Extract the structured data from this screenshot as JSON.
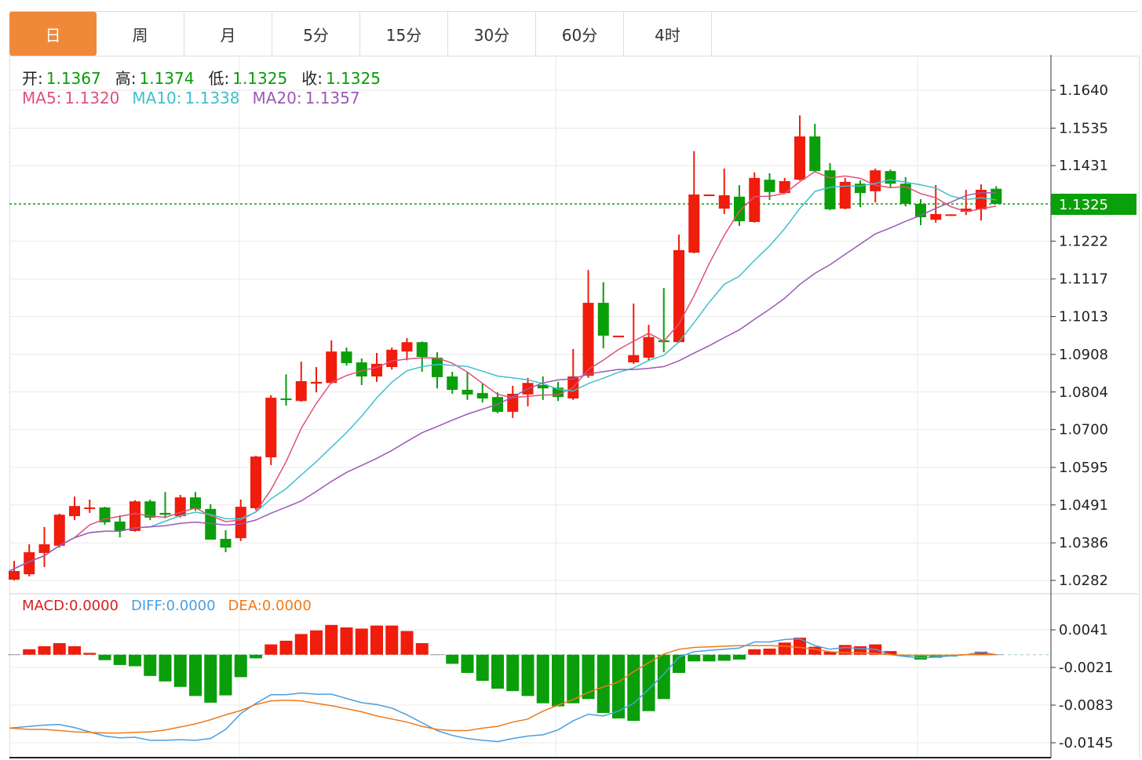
{
  "tabs": [
    {
      "label": "日",
      "active": true
    },
    {
      "label": "周"
    },
    {
      "label": "月"
    },
    {
      "label": "5分"
    },
    {
      "label": "15分"
    },
    {
      "label": "30分"
    },
    {
      "label": "60分"
    },
    {
      "label": "4时"
    }
  ],
  "ohlc_header": {
    "open_label": "开:",
    "open": "1.1367",
    "high_label": "高:",
    "high": "1.1374",
    "low_label": "低:",
    "low": "1.1325",
    "close_label": "收:",
    "close": "1.1325"
  },
  "ma_header": {
    "ma5_label": "MA5:",
    "ma5": "1.1320",
    "ma10_label": "MA10:",
    "ma10": "1.1338",
    "ma20_label": "MA20:",
    "ma20": "1.1357"
  },
  "macd_header": {
    "macd_label": "MACD:",
    "macd": "0.0000",
    "diff_label": "DIFF:",
    "diff": "0.0000",
    "dea_label": "DEA:",
    "dea": "0.0000"
  },
  "colors": {
    "up": "#f01c0c",
    "down": "#0a9e0a",
    "ma5": "#e0507a",
    "ma10": "#3fc1c9",
    "ma20": "#9b59b6",
    "diff": "#4a9fe0",
    "dea": "#f07a1a",
    "accent": "#f0883a",
    "last_price_bg": "#0aa00a"
  },
  "chart_data": [
    {
      "type": "candlestick",
      "up_color_meaning": "red = rise, green = fall",
      "last_price": "1.1325",
      "y_ticks": [
        "1.1640",
        "1.1535",
        "1.1431",
        "1.1222",
        "1.1117",
        "1.1013",
        "1.0908",
        "1.0804",
        "1.0700",
        "1.0595",
        "1.0491",
        "1.0386",
        "1.0282"
      ],
      "ylim": [
        1.0282,
        1.164
      ],
      "grid": true,
      "moving_averages": [
        5,
        10,
        20
      ],
      "ohlc": [
        [
          1.0284,
          1.0336,
          1.0282,
          1.0308
        ],
        [
          1.0299,
          1.0382,
          1.0293,
          1.036
        ],
        [
          1.0358,
          1.043,
          1.0319,
          1.0382
        ],
        [
          1.0378,
          1.0467,
          1.0373,
          1.0464
        ],
        [
          1.046,
          1.0514,
          1.0449,
          1.0488
        ],
        [
          1.048,
          1.0506,
          1.0469,
          1.0484
        ],
        [
          1.0484,
          1.0486,
          1.0436,
          1.0443
        ],
        [
          1.0445,
          1.0462,
          1.0401,
          1.0419
        ],
        [
          1.0419,
          1.0504,
          1.0417,
          1.0501
        ],
        [
          1.0501,
          1.0506,
          1.0449,
          1.0456
        ],
        [
          1.0469,
          1.0527,
          1.0454,
          1.0464
        ],
        [
          1.046,
          1.0519,
          1.0456,
          1.0512
        ],
        [
          1.0512,
          1.0527,
          1.0475,
          1.048
        ],
        [
          1.048,
          1.0493,
          1.0395,
          1.0395
        ],
        [
          1.0397,
          1.0421,
          1.036,
          1.0373
        ],
        [
          1.0399,
          1.0506,
          1.0391,
          1.0486
        ],
        [
          1.0482,
          1.0627,
          1.0477,
          1.0625
        ],
        [
          1.0623,
          1.0795,
          1.0601,
          1.0788
        ],
        [
          1.0786,
          1.0853,
          1.0766,
          1.0782
        ],
        [
          1.0779,
          1.0888,
          1.0777,
          1.0834
        ],
        [
          1.0827,
          1.0873,
          1.0803,
          1.0832
        ],
        [
          1.0829,
          1.0947,
          1.0827,
          1.0916
        ],
        [
          1.0916,
          1.0927,
          1.0877,
          1.0884
        ],
        [
          1.0886,
          1.0897,
          1.0823,
          1.0847
        ],
        [
          1.0847,
          1.0912,
          1.0832,
          1.0882
        ],
        [
          1.0873,
          1.0927,
          1.0866,
          1.0921
        ],
        [
          1.0916,
          1.0953,
          1.0892,
          1.0942
        ],
        [
          1.0942,
          1.0944,
          1.086,
          1.0901
        ],
        [
          1.0899,
          1.0914,
          1.0814,
          1.0845
        ],
        [
          1.0847,
          1.086,
          1.0799,
          1.081
        ],
        [
          1.081,
          1.086,
          1.0782,
          1.0797
        ],
        [
          1.0801,
          1.0827,
          1.0775,
          1.0786
        ],
        [
          1.079,
          1.0803,
          1.0745,
          1.0749
        ],
        [
          1.0749,
          1.0821,
          1.0732,
          1.0799
        ],
        [
          1.0797,
          1.0843,
          1.0764,
          1.0829
        ],
        [
          1.0823,
          1.0847,
          1.0782,
          1.0814
        ],
        [
          1.0816,
          1.0832,
          1.0779,
          1.079
        ],
        [
          1.0786,
          1.0923,
          1.0782,
          1.0847
        ],
        [
          1.0849,
          1.1142,
          1.0843,
          1.1051
        ],
        [
          1.1051,
          1.1108,
          1.0925,
          1.096
        ],
        [
          1.0958,
          1.096,
          1.0958,
          1.096
        ],
        [
          1.0886,
          1.1049,
          1.0882,
          1.0906
        ],
        [
          1.0899,
          1.099,
          1.0892,
          1.0956
        ],
        [
          1.0947,
          1.1092,
          1.0914,
          1.0942
        ],
        [
          1.0942,
          1.124,
          1.094,
          1.1197
        ],
        [
          1.119,
          1.1471,
          1.1188,
          1.1351
        ],
        [
          1.1349,
          1.1351,
          1.1349,
          1.1351
        ],
        [
          1.1312,
          1.1423,
          1.1297,
          1.1349
        ],
        [
          1.1345,
          1.1377,
          1.1264,
          1.1277
        ],
        [
          1.1275,
          1.1412,
          1.1273,
          1.1397
        ],
        [
          1.1392,
          1.141,
          1.1336,
          1.1358
        ],
        [
          1.1355,
          1.1397,
          1.1353,
          1.1388
        ],
        [
          1.1392,
          1.157,
          1.139,
          1.1512
        ],
        [
          1.1512,
          1.1547,
          1.1414,
          1.1416
        ],
        [
          1.1418,
          1.1438,
          1.1308,
          1.131
        ],
        [
          1.1312,
          1.1397,
          1.131,
          1.1386
        ],
        [
          1.1381,
          1.139,
          1.1316,
          1.1355
        ],
        [
          1.136,
          1.1423,
          1.1329,
          1.1418
        ],
        [
          1.1416,
          1.142,
          1.1371,
          1.1381
        ],
        [
          1.1381,
          1.1399,
          1.1318,
          1.1325
        ],
        [
          1.1325,
          1.1338,
          1.1266,
          1.1288
        ],
        [
          1.1281,
          1.1377,
          1.1273,
          1.1297
        ],
        [
          1.1295,
          1.1296,
          1.1295,
          1.1296
        ],
        [
          1.1303,
          1.1364,
          1.1294,
          1.1312
        ],
        [
          1.131,
          1.1379,
          1.1279,
          1.1364
        ],
        [
          1.1367,
          1.1374,
          1.1325,
          1.1325
        ]
      ]
    },
    {
      "type": "bar+line",
      "name": "MACD",
      "y_ticks": [
        "0.0041",
        "-0.0021",
        "-0.0083",
        "-0.0145"
      ],
      "ylim": [
        -0.0145,
        0.0041
      ],
      "macd": [
        0,
        0.0009,
        0.0014,
        0.0019,
        0.0014,
        0.0003,
        -0.0009,
        -0.0017,
        -0.0019,
        -0.0035,
        -0.0044,
        -0.0053,
        -0.0068,
        -0.0079,
        -0.0067,
        -0.0037,
        -0.0006,
        0.0017,
        0.0023,
        0.0034,
        0.004,
        0.0049,
        0.0045,
        0.0043,
        0.0048,
        0.0048,
        0.0039,
        0.0019,
        0,
        -0.0015,
        -0.003,
        -0.0043,
        -0.0056,
        -0.006,
        -0.0068,
        -0.008,
        -0.0085,
        -0.008,
        -0.0073,
        -0.0096,
        -0.0105,
        -0.0109,
        -0.0093,
        -0.0073,
        -0.003,
        -0.0011,
        -0.0011,
        -0.001,
        -0.0008,
        0.0009,
        0.001,
        0.002,
        0.0028,
        0.0013,
        0.0005,
        0.0016,
        0.0014,
        0.0017,
        0.0006,
        -0.0002,
        -0.0008,
        -0.0005,
        -0.0003,
        0,
        0.0005,
        0
      ],
      "diff": [
        -0.0121,
        -0.0118,
        -0.0116,
        -0.0115,
        -0.012,
        -0.0127,
        -0.0134,
        -0.0137,
        -0.0136,
        -0.0141,
        -0.0141,
        -0.014,
        -0.0141,
        -0.0138,
        -0.0123,
        -0.0097,
        -0.008,
        -0.0066,
        -0.0066,
        -0.0063,
        -0.0065,
        -0.0065,
        -0.0072,
        -0.0079,
        -0.0082,
        -0.0088,
        -0.0099,
        -0.0112,
        -0.0125,
        -0.0133,
        -0.0138,
        -0.0141,
        -0.0143,
        -0.0138,
        -0.0134,
        -0.0132,
        -0.0124,
        -0.0109,
        -0.0098,
        -0.0101,
        -0.0093,
        -0.008,
        -0.0057,
        -0.0032,
        -0.0004,
        0.0005,
        0.0007,
        0.0009,
        0.0011,
        0.0021,
        0.0021,
        0.0025,
        0.0026,
        0.0015,
        0.0009,
        0.0012,
        0.001,
        0.0009,
        0.0,
        -0.0003,
        -0.0005,
        -0.0004,
        -0.0002,
        0,
        0.0004,
        0
      ],
      "dea": [
        -0.0121,
        -0.0123,
        -0.0123,
        -0.0125,
        -0.0127,
        -0.0128,
        -0.0129,
        -0.0129,
        -0.0128,
        -0.0127,
        -0.0124,
        -0.0119,
        -0.0114,
        -0.0107,
        -0.0099,
        -0.0092,
        -0.0082,
        -0.0076,
        -0.0075,
        -0.0076,
        -0.008,
        -0.0084,
        -0.0089,
        -0.0094,
        -0.0101,
        -0.0106,
        -0.0111,
        -0.0118,
        -0.0123,
        -0.0125,
        -0.0125,
        -0.0121,
        -0.0118,
        -0.0111,
        -0.0106,
        -0.0093,
        -0.0083,
        -0.0074,
        -0.0062,
        -0.0053,
        -0.0045,
        -0.0028,
        -0.0013,
        0.0001,
        0.0009,
        0.0012,
        0.0013,
        0.0014,
        0.0015,
        0.0015,
        0.0015,
        0.0014,
        0.0012,
        0.0009,
        0.0005,
        0.0003,
        0.0003,
        0.0002,
        0,
        -0.0001,
        -0.0001,
        -0.0001,
        -0.0001,
        0,
        0,
        0
      ]
    }
  ]
}
